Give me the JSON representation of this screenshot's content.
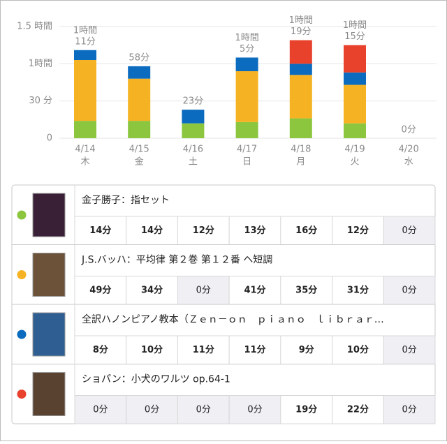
{
  "chart_data": {
    "type": "stacked-bar",
    "categories": [
      "4/14",
      "4/15",
      "4/16",
      "4/17",
      "4/18",
      "4/19",
      "4/20"
    ],
    "weekdays": [
      "木",
      "金",
      "土",
      "日",
      "月",
      "火",
      "水"
    ],
    "ylim": [
      0,
      90
    ],
    "yticks": [
      0,
      {
        "value": 30,
        "label": "30 分"
      },
      {
        "value": 60,
        "label": "1時間"
      },
      {
        "value": 90,
        "label": "1.5 時間"
      }
    ],
    "grid": true,
    "series": [
      {
        "name": "金子勝子：指セット",
        "color": "#8cc63f",
        "values": [
          14,
          14,
          12,
          13,
          16,
          12,
          0
        ],
        "value_labels": [
          "14分",
          "14分",
          "12分",
          "13分",
          "16分",
          "12分",
          "0分"
        ]
      },
      {
        "name": "J.S.バッハ：平均律 第２巻 第１２番 ヘ短調",
        "color": "#f5b324",
        "values": [
          49,
          34,
          0,
          41,
          35,
          31,
          0
        ],
        "value_labels": [
          "49分",
          "34分",
          "0分",
          "41分",
          "35分",
          "31分",
          "0分"
        ]
      },
      {
        "name": "全訳ハノンピアノ教本（Ｚｅｎ－ｏｎ　ｐｉａｎｏ　ｌｉｂｒａｒ…",
        "color": "#0b6bbf",
        "values": [
          8,
          10,
          11,
          11,
          9,
          10,
          0
        ],
        "value_labels": [
          "8分",
          "10分",
          "11分",
          "11分",
          "9分",
          "10分",
          "0分"
        ]
      },
      {
        "name": "ショパン：小犬のワルツ op.64-1",
        "color": "#e8412c",
        "values": [
          0,
          0,
          0,
          0,
          19,
          22,
          0
        ],
        "value_labels": [
          "0分",
          "0分",
          "0分",
          "0分",
          "19分",
          "22分",
          "0分"
        ]
      }
    ],
    "totals": [
      71,
      58,
      23,
      65,
      79,
      75,
      0
    ],
    "total_labels": [
      [
        "1時間",
        "11分"
      ],
      [
        "58分"
      ],
      [
        "23分"
      ],
      [
        "1時間",
        "5分"
      ],
      [
        "1時間",
        "19分"
      ],
      [
        "1時間",
        "15分"
      ],
      [
        "0分"
      ]
    ]
  }
}
